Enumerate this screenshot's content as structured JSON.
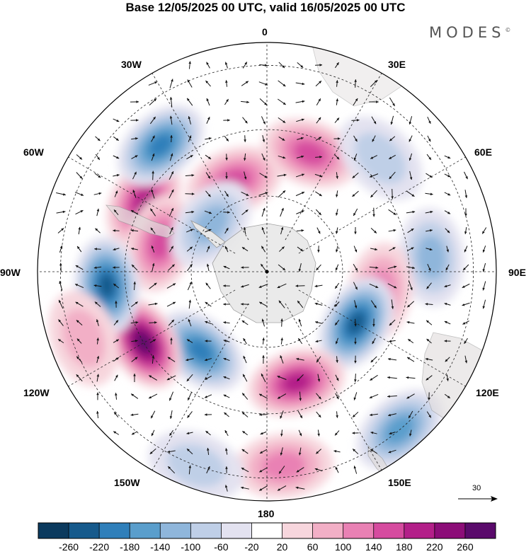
{
  "title": "Base 12/05/2025 00 UTC, valid 16/05/2025 00 UTC",
  "brand": "MODES",
  "brand_mark": "©",
  "longitude_labels": {
    "lon_0": "0",
    "lon_30e": "30E",
    "lon_60e": "60E",
    "lon_90e": "90E",
    "lon_120e": "120E",
    "lon_150e": "150E",
    "lon_180": "180",
    "lon_150w": "150W",
    "lon_120w": "120W",
    "lon_90w": "90W",
    "lon_60w": "60W",
    "lon_30w": "30W"
  },
  "reference_vector": "30",
  "colorbar": {
    "ticks": [
      "-260",
      "-220",
      "-180",
      "-140",
      "-100",
      "-60",
      "-20",
      "20",
      "60",
      "100",
      "140",
      "180",
      "220",
      "260"
    ],
    "colors": [
      "#0b3a5e",
      "#165a8c",
      "#2f7fba",
      "#5a9ecc",
      "#8fb6db",
      "#bfcfe7",
      "#e3e2f0",
      "#ffffff",
      "#f7d6dd",
      "#f2afc6",
      "#e981b4",
      "#d64b9f",
      "#b31f89",
      "#8c0d78",
      "#5a0a6b"
    ]
  },
  "anomaly_centers": [
    {
      "lon": -60,
      "r": 0.62,
      "value": 180
    },
    {
      "lon": -40,
      "r": 0.72,
      "value": -200
    },
    {
      "lon": -75,
      "r": 0.48,
      "value": 140
    },
    {
      "lon": -20,
      "r": 0.42,
      "value": 140
    },
    {
      "lon": -50,
      "r": 0.32,
      "value": -100
    },
    {
      "lon": 20,
      "r": 0.55,
      "value": 140
    },
    {
      "lon": 45,
      "r": 0.7,
      "value": -60
    },
    {
      "lon": 85,
      "r": 0.72,
      "value": -100
    },
    {
      "lon": 100,
      "r": 0.5,
      "value": 100
    },
    {
      "lon": 120,
      "r": 0.45,
      "value": -220
    },
    {
      "lon": 165,
      "r": 0.5,
      "value": 180
    },
    {
      "lon": 140,
      "r": 0.9,
      "value": -140
    },
    {
      "lon": 175,
      "r": 0.85,
      "value": 100
    },
    {
      "lon": -140,
      "r": 0.45,
      "value": -200
    },
    {
      "lon": -120,
      "r": 0.62,
      "value": 260
    },
    {
      "lon": -95,
      "r": 0.7,
      "value": -220
    },
    {
      "lon": -110,
      "r": 0.85,
      "value": 60
    },
    {
      "lon": -160,
      "r": 0.9,
      "value": -60
    }
  ]
}
